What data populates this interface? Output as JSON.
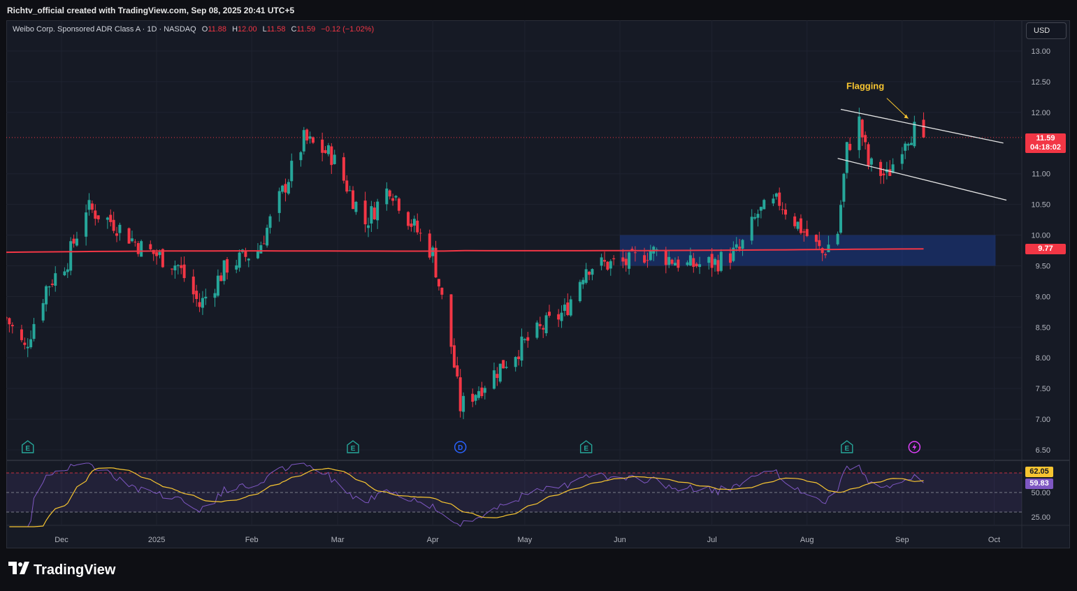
{
  "header": {
    "caption": "Richtv_official created with TradingView.com, Sep 08, 2025 20:41 UTC+5"
  },
  "legend": {
    "symbol": "Weibo Corp. Sponsored ADR Class A · 1D · NASDAQ",
    "o_label": "O",
    "o_value": "11.88",
    "h_label": "H",
    "h_value": "12.00",
    "l_label": "L",
    "l_value": "11.58",
    "c_label": "C",
    "c_value": "11.59",
    "change": "−0.12 (−1.02%)"
  },
  "currency": "USD",
  "price_tag": {
    "price": "11.59",
    "countdown": "04:18:02"
  },
  "ma_tag": "9.77",
  "rsi_tags": {
    "rsi_ma": "62.05",
    "rsi": "59.83"
  },
  "annotation": "Flagging",
  "footer": {
    "brand": "TradingView"
  },
  "colors": {
    "up": "#26a69a",
    "down": "#f23645",
    "ma": "#f23645",
    "rsi_line": "#7e57c2",
    "rsi_ma": "#f7c531",
    "zone": "#1c3a8a",
    "annotation": "#f7c531"
  },
  "event_markers": [
    {
      "date": "2024-11-20",
      "type": "E"
    },
    {
      "date": "2025-03-06",
      "type": "E"
    },
    {
      "date": "2025-04-10",
      "type": "D"
    },
    {
      "date": "2025-05-21",
      "type": "E"
    },
    {
      "date": "2025-08-14",
      "type": "E"
    },
    {
      "date": "2025-09-05",
      "type": "split"
    }
  ],
  "chart_data": {
    "type": "candlestick",
    "title": "Weibo Corp. Sponsored ADR Class A · 1D · NASDAQ",
    "price_axis": {
      "ticks": [
        "13.00",
        "12.50",
        "12.00",
        "11.00",
        "10.50",
        "10.00",
        "9.50",
        "9.00",
        "8.50",
        "8.00",
        "7.50",
        "7.00",
        "6.50"
      ]
    },
    "time_axis": {
      "ticks": [
        "Dec",
        "2025",
        "Feb",
        "Mar",
        "Apr",
        "May",
        "Jun",
        "Jul",
        "Aug",
        "Sep",
        "Oct"
      ],
      "range": [
        "2024-11-13",
        "2025-10-10"
      ]
    },
    "ohlc_key_points": [
      {
        "date": "2024-11-13",
        "close": 8.65
      },
      {
        "date": "2024-11-19",
        "close": 8.15
      },
      {
        "date": "2024-11-26",
        "close": 9.15
      },
      {
        "date": "2024-12-03",
        "close": 9.6
      },
      {
        "date": "2024-12-09",
        "close": 10.45
      },
      {
        "date": "2024-12-18",
        "close": 10.2
      },
      {
        "date": "2024-12-27",
        "close": 9.8
      },
      {
        "date": "2025-01-08",
        "close": 9.5
      },
      {
        "date": "2025-01-15",
        "close": 8.85
      },
      {
        "date": "2025-01-24",
        "close": 9.5
      },
      {
        "date": "2025-02-03",
        "close": 9.75
      },
      {
        "date": "2025-02-11",
        "close": 10.7
      },
      {
        "date": "2025-02-18",
        "close": 11.55
      },
      {
        "date": "2025-02-27",
        "close": 11.3
      },
      {
        "date": "2025-03-10",
        "close": 10.2
      },
      {
        "date": "2025-03-18",
        "close": 10.8
      },
      {
        "date": "2025-03-25",
        "close": 10.2
      },
      {
        "date": "2025-04-01",
        "close": 9.7
      },
      {
        "date": "2025-04-07",
        "close": 8.2
      },
      {
        "date": "2025-04-10",
        "close": 7.2
      },
      {
        "date": "2025-04-18",
        "close": 7.6
      },
      {
        "date": "2025-04-28",
        "close": 8.1
      },
      {
        "date": "2025-05-07",
        "close": 8.5
      },
      {
        "date": "2025-05-14",
        "close": 8.75
      },
      {
        "date": "2025-05-21",
        "close": 9.5
      },
      {
        "date": "2025-06-04",
        "close": 9.55
      },
      {
        "date": "2025-06-11",
        "close": 9.75
      },
      {
        "date": "2025-06-23",
        "close": 9.5
      },
      {
        "date": "2025-07-02",
        "close": 9.55
      },
      {
        "date": "2025-07-10",
        "close": 9.75
      },
      {
        "date": "2025-07-16",
        "close": 10.35
      },
      {
        "date": "2025-07-23",
        "close": 10.55
      },
      {
        "date": "2025-07-31",
        "close": 10.05
      },
      {
        "date": "2025-08-06",
        "close": 9.7
      },
      {
        "date": "2025-08-11",
        "close": 10.05
      },
      {
        "date": "2025-08-14",
        "close": 11.4
      },
      {
        "date": "2025-08-18",
        "close": 11.85
      },
      {
        "date": "2025-08-21",
        "close": 11.15
      },
      {
        "date": "2025-08-27",
        "close": 10.95
      },
      {
        "date": "2025-09-02",
        "close": 11.6
      },
      {
        "date": "2025-09-05",
        "close": 11.71
      },
      {
        "date": "2025-09-08",
        "open": 11.88,
        "high": 12.0,
        "low": 11.58,
        "close": 11.59
      }
    ],
    "moving_average": {
      "start": 9.72,
      "mid": 9.75,
      "end": 9.77
    },
    "zone": {
      "from": "2025-06-01",
      "to": "2025-10-01",
      "low": 9.5,
      "high": 10.0
    },
    "flag_channel": {
      "upper": [
        [
          "2025-08-12",
          12.05
        ],
        [
          "2025-10-04",
          11.5
        ]
      ],
      "lower": [
        [
          "2025-08-11",
          11.25
        ],
        [
          "2025-10-05",
          10.57
        ]
      ]
    },
    "rsi": {
      "levels": [
        "50.00",
        "25.00"
      ],
      "upper_band": 70,
      "lower_band": 30,
      "last_rsi": 59.83,
      "last_rsi_ma": 62.05
    }
  }
}
